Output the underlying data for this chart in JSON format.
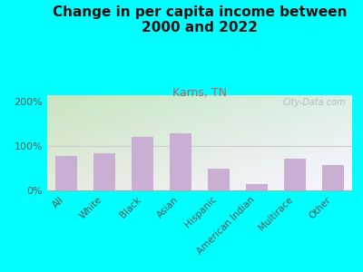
{
  "title": "Change in per capita income between\n2000 and 2022",
  "subtitle": "Karns, TN",
  "categories": [
    "All",
    "White",
    "Black",
    "Asian",
    "Hispanic",
    "American Indian",
    "Multirace",
    "Other"
  ],
  "values": [
    78,
    83,
    120,
    128,
    50,
    15,
    72,
    57
  ],
  "bar_color": "#c9afd4",
  "background_outer": "#00ffff",
  "ylabel_ticks": [
    "0%",
    "100%",
    "200%"
  ],
  "ytick_vals": [
    0,
    100,
    200
  ],
  "ylim": [
    0,
    215
  ],
  "watermark": "City-Data.com",
  "title_fontsize": 11,
  "subtitle_fontsize": 9,
  "subtitle_color": "#c06060",
  "title_color": "#111111",
  "tick_label_color": "#555555",
  "grid_color": "#cccccc"
}
